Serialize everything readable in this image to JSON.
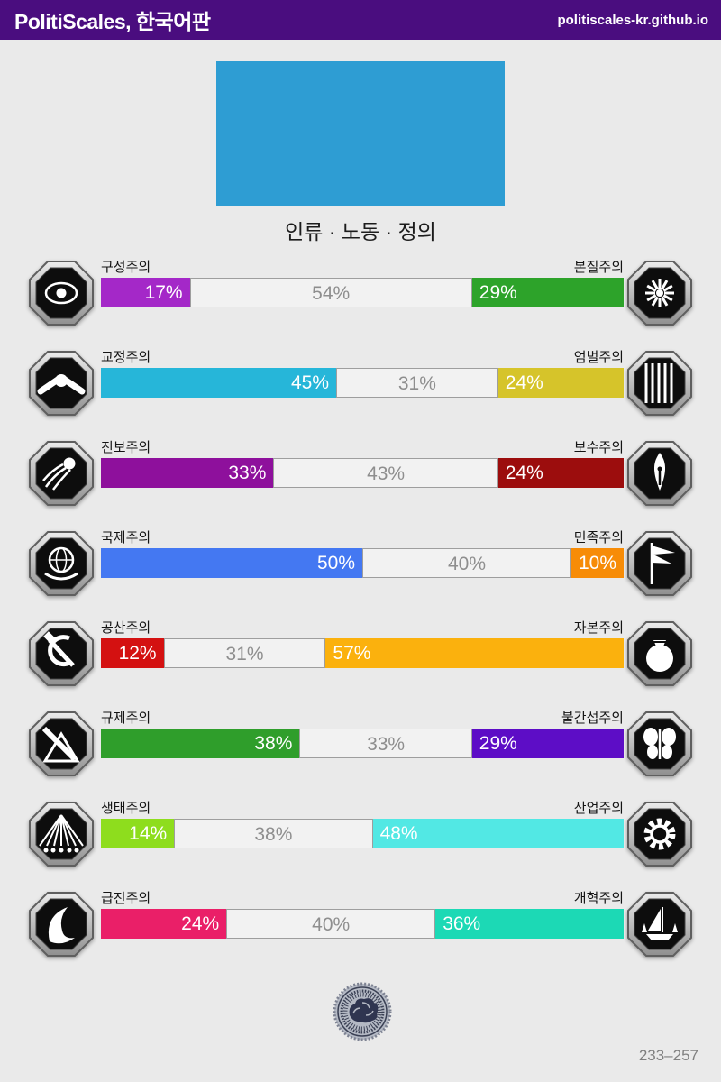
{
  "header": {
    "title": "PolitiScales, 한국어판",
    "site": "politiscales-kr.github.io",
    "background_color": "#4a0d7f"
  },
  "flag": {
    "color": "#2e9dd3"
  },
  "section_title": "인류 · 노동 · 정의",
  "chart_data": {
    "type": "bar",
    "title": "인류 · 노동 · 정의",
    "orientation": "horizontal-stacked",
    "axes": [
      {
        "left_label": "구성주의",
        "right_label": "본질주의",
        "left_pct_text": "17%",
        "mid_pct_text": "54%",
        "right_pct_text": "29%",
        "left_value": 17,
        "mid_value": 54,
        "right_value": 29,
        "left_color": "#a428c8",
        "right_color": "#2da32a",
        "left_icon": "eye-icon",
        "right_icon": "chrysanthemum-icon"
      },
      {
        "left_label": "교정주의",
        "right_label": "엄벌주의",
        "left_pct_text": "45%",
        "mid_pct_text": "31%",
        "right_pct_text": "24%",
        "left_value": 45,
        "mid_value": 31,
        "right_value": 24,
        "left_color": "#26b6d9",
        "right_color": "#d6c42a",
        "left_icon": "handshake-icon",
        "right_icon": "prison-bars-icon"
      },
      {
        "left_label": "진보주의",
        "right_label": "보수주의",
        "left_pct_text": "33%",
        "mid_pct_text": "43%",
        "right_pct_text": "24%",
        "left_value": 33,
        "mid_value": 43,
        "right_value": 24,
        "left_color": "#8e109c",
        "right_color": "#9c0d0d",
        "left_icon": "comet-icon",
        "right_icon": "pen-nib-icon"
      },
      {
        "left_label": "국제주의",
        "right_label": "민족주의",
        "left_pct_text": "50%",
        "mid_pct_text": "40%",
        "right_pct_text": "10%",
        "left_value": 50,
        "mid_value": 40,
        "right_value": 10,
        "left_color": "#4478f2",
        "right_color": "#f78c07",
        "left_icon": "globe-laurel-icon",
        "right_icon": "flag-icon"
      },
      {
        "left_label": "공산주의",
        "right_label": "자본주의",
        "left_pct_text": "12%",
        "mid_pct_text": "31%",
        "right_pct_text": "57%",
        "left_value": 12,
        "mid_value": 31,
        "right_value": 57,
        "left_color": "#d41111",
        "right_color": "#fbb10d",
        "left_icon": "hammer-sickle-icon",
        "right_icon": "money-bag-icon"
      },
      {
        "left_label": "규제주의",
        "right_label": "불간섭주의",
        "left_pct_text": "38%",
        "mid_pct_text": "33%",
        "right_pct_text": "29%",
        "left_value": 38,
        "mid_value": 33,
        "right_value": 29,
        "left_color": "#2f9e2b",
        "right_color": "#5d0dc6",
        "left_icon": "ruler-compass-icon",
        "right_icon": "butterfly-icon"
      },
      {
        "left_label": "생태주의",
        "right_label": "산업주의",
        "left_pct_text": "14%",
        "mid_pct_text": "38%",
        "right_pct_text": "48%",
        "left_value": 14,
        "mid_value": 38,
        "right_value": 48,
        "left_color": "#8edd1d",
        "right_color": "#52e8e4",
        "left_icon": "sun-rays-tree-icon",
        "right_icon": "gear-icon"
      },
      {
        "left_label": "급진주의",
        "right_label": "개혁주의",
        "left_pct_text": "24%",
        "mid_pct_text": "40%",
        "right_pct_text": "36%",
        "left_value": 24,
        "mid_value": 40,
        "right_value": 36,
        "left_color": "#ea1f68",
        "right_color": "#1cd9b5",
        "left_icon": "wave-icon",
        "right_icon": "sailboat-icon"
      }
    ]
  },
  "footer": {
    "seal_icon": "brain-seal-icon",
    "result_code": "233–257"
  }
}
